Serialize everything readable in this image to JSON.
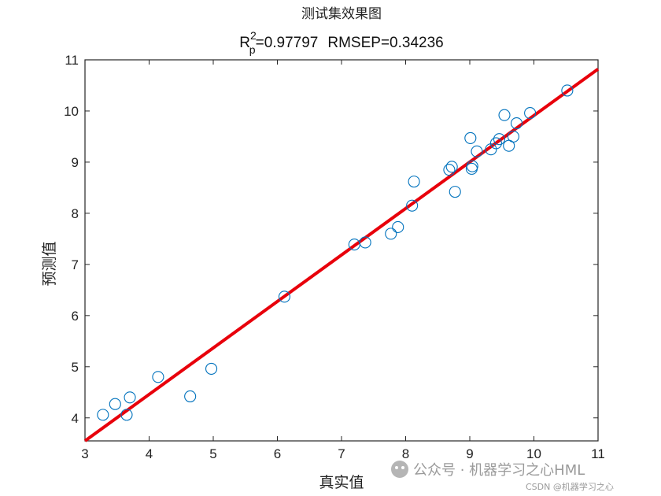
{
  "chart_data": {
    "type": "scatter",
    "title": "测试集效果图",
    "subtitle": {
      "r_symbol": "R",
      "r_sup": "2",
      "r_sub": "p",
      "r_value": "=0.97797",
      "rmsep": "RMSEP=0.34236"
    },
    "xlabel": "真实值",
    "ylabel": "预测值",
    "xlim": [
      3,
      11
    ],
    "ylim": [
      3.55,
      11
    ],
    "xticks": [
      3,
      4,
      5,
      6,
      7,
      8,
      9,
      10,
      11
    ],
    "yticks": [
      4,
      5,
      6,
      7,
      8,
      9,
      10,
      11
    ],
    "grid": false,
    "points": [
      {
        "x": 3.28,
        "y": 4.06
      },
      {
        "x": 3.47,
        "y": 4.27
      },
      {
        "x": 3.65,
        "y": 4.06
      },
      {
        "x": 3.7,
        "y": 4.4
      },
      {
        "x": 4.14,
        "y": 4.8
      },
      {
        "x": 4.64,
        "y": 4.42
      },
      {
        "x": 4.97,
        "y": 4.96
      },
      {
        "x": 6.11,
        "y": 6.37
      },
      {
        "x": 7.2,
        "y": 7.39
      },
      {
        "x": 7.37,
        "y": 7.43
      },
      {
        "x": 7.77,
        "y": 7.6
      },
      {
        "x": 7.88,
        "y": 7.73
      },
      {
        "x": 8.1,
        "y": 8.15
      },
      {
        "x": 8.13,
        "y": 8.62
      },
      {
        "x": 8.68,
        "y": 8.85
      },
      {
        "x": 8.72,
        "y": 8.91
      },
      {
        "x": 8.77,
        "y": 8.42
      },
      {
        "x": 9.01,
        "y": 9.47
      },
      {
        "x": 9.03,
        "y": 8.87
      },
      {
        "x": 9.04,
        "y": 8.92
      },
      {
        "x": 9.11,
        "y": 9.21
      },
      {
        "x": 9.33,
        "y": 9.25
      },
      {
        "x": 9.41,
        "y": 9.37
      },
      {
        "x": 9.46,
        "y": 9.45
      },
      {
        "x": 9.54,
        "y": 9.92
      },
      {
        "x": 9.61,
        "y": 9.32
      },
      {
        "x": 9.68,
        "y": 9.5
      },
      {
        "x": 9.73,
        "y": 9.76
      },
      {
        "x": 9.94,
        "y": 9.96
      },
      {
        "x": 10.52,
        "y": 10.4
      }
    ],
    "fit_line": {
      "x": [
        3.0,
        11.0
      ],
      "y": [
        3.55,
        10.82
      ]
    },
    "marker_color": "#0072BD",
    "line_color": "#e8000b"
  },
  "watermark": {
    "main": "公众号 · 机器学习之心HML",
    "small": "CSDN @机器学习之心"
  }
}
